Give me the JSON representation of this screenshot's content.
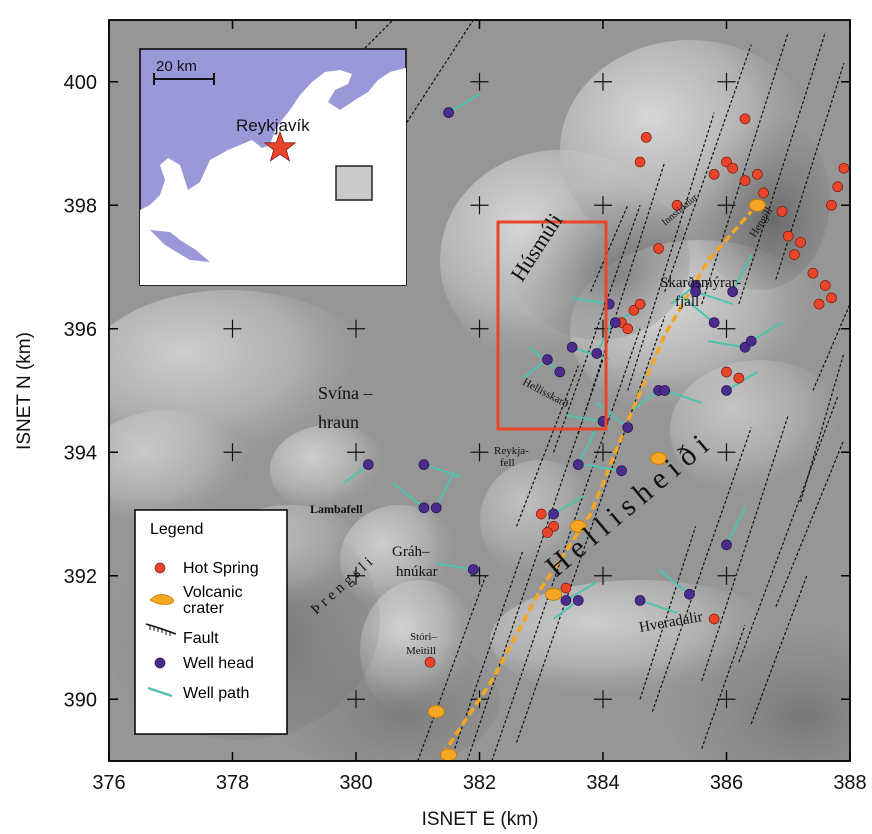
{
  "axes": {
    "xlabel": "ISNET E (km)",
    "ylabel": "ISNET N (km)",
    "xlim": [
      376,
      388
    ],
    "ylim": [
      389,
      401
    ],
    "xticks": [
      "376",
      "378",
      "380",
      "382",
      "384",
      "386",
      "388"
    ],
    "yticks": [
      "390",
      "392",
      "394",
      "396",
      "398",
      "400"
    ]
  },
  "inset": {
    "scale_label": "20 km",
    "city_label": "Reykjavík",
    "sea_color": "#9a98d8",
    "land_color": "#ffffff",
    "star_color": "#e8452a"
  },
  "place_names": {
    "husmuli": "Húsmúli",
    "skardsmyrar": "Skarðsmýrar-",
    "fjall": "fjall",
    "innstidalur": "Innstidalur",
    "hengill": "Hengill",
    "hellisskard": "Hellisskarð",
    "svina1": "Svína –",
    "svina2": "hraun",
    "reykjafell": "Reykja-",
    "fell": "fell",
    "lambafell": "Lambafell",
    "hellisheidi": "Hellisheiði",
    "threngsli": "Þrengsli",
    "gran1": "Gráh–",
    "gran2": "hnúkar",
    "stori1": "Stóri–",
    "stori2": "Meitill",
    "hveradalir": "Hveradalir"
  },
  "legend": {
    "title": "Legend",
    "items": [
      {
        "label": "Hot Spring",
        "color": "#e8452a"
      },
      {
        "label": "Volcanic",
        "label2": "crater",
        "color": "#f5a623"
      },
      {
        "label": "Fault",
        "color": "#111111"
      },
      {
        "label": "Well head",
        "color": "#4b2c8c"
      },
      {
        "label": "Well path",
        "color": "#4ec3b0"
      }
    ]
  },
  "study_area_color": "#e8452a",
  "hot_springs": [
    [
      384.7,
      399.1
    ],
    [
      384.6,
      398.7
    ],
    [
      385.2,
      398.0
    ],
    [
      385.8,
      398.5
    ],
    [
      386.0,
      398.7
    ],
    [
      386.1,
      398.6
    ],
    [
      386.3,
      398.4
    ],
    [
      386.5,
      398.5
    ],
    [
      386.3,
      399.4
    ],
    [
      386.6,
      398.2
    ],
    [
      386.9,
      397.9
    ],
    [
      387.0,
      397.5
    ],
    [
      387.1,
      397.2
    ],
    [
      387.2,
      397.4
    ],
    [
      387.4,
      396.9
    ],
    [
      387.6,
      396.7
    ],
    [
      387.7,
      396.5
    ],
    [
      387.5,
      396.4
    ],
    [
      387.8,
      398.3
    ],
    [
      387.7,
      398.0
    ],
    [
      387.9,
      398.6
    ],
    [
      384.3,
      396.1
    ],
    [
      384.5,
      396.3
    ],
    [
      384.6,
      396.4
    ],
    [
      384.4,
      396.0
    ],
    [
      384.9,
      397.3
    ],
    [
      386.0,
      395.3
    ],
    [
      386.2,
      395.2
    ],
    [
      384.9,
      393.9
    ],
    [
      383.0,
      393.0
    ],
    [
      383.2,
      392.8
    ],
    [
      383.1,
      392.7
    ],
    [
      383.4,
      391.8
    ],
    [
      385.8,
      391.3
    ],
    [
      381.2,
      390.6
    ]
  ],
  "well_heads": [
    [
      381.5,
      399.5
    ],
    [
      383.1,
      395.5
    ],
    [
      383.5,
      395.7
    ],
    [
      383.3,
      395.3
    ],
    [
      383.9,
      395.6
    ],
    [
      384.1,
      396.4
    ],
    [
      384.2,
      396.1
    ],
    [
      385.5,
      396.7
    ],
    [
      385.5,
      396.6
    ],
    [
      385.8,
      396.1
    ],
    [
      386.1,
      396.6
    ],
    [
      386.3,
      395.7
    ],
    [
      386.0,
      395.0
    ],
    [
      384.9,
      395.0
    ],
    [
      385.0,
      395.0
    ],
    [
      384.4,
      394.4
    ],
    [
      383.6,
      393.8
    ],
    [
      384.3,
      393.7
    ],
    [
      383.2,
      393.0
    ],
    [
      380.2,
      393.8
    ],
    [
      381.1,
      393.8
    ],
    [
      381.1,
      393.1
    ],
    [
      381.3,
      393.1
    ],
    [
      381.9,
      392.1
    ],
    [
      383.4,
      391.6
    ],
    [
      383.6,
      391.6
    ],
    [
      384.6,
      391.6
    ],
    [
      385.4,
      391.7
    ],
    [
      386.0,
      392.5
    ],
    [
      384.0,
      394.5
    ],
    [
      386.4,
      395.8
    ]
  ],
  "craters": [
    [
      386.5,
      398.0
    ],
    [
      384.9,
      393.9
    ],
    [
      383.6,
      392.8
    ],
    [
      383.2,
      391.7
    ],
    [
      381.3,
      389.8
    ],
    [
      381.5,
      389.1
    ]
  ]
}
